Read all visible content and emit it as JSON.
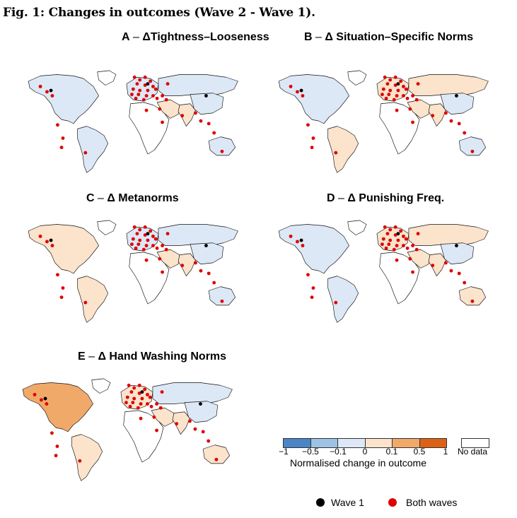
{
  "figure_title": "Fig. 1: Changes in outcomes (Wave 2 - Wave 1).",
  "panels": [
    {
      "letter": "A",
      "dash": " – ",
      "title": "ΔTightness–Looseness",
      "fills": {
        "na": "#dde8f6",
        "eu": "#dde8f6",
        "ru": "#dde8f6",
        "sa": "#dde8f6",
        "af": "#ffffff",
        "me": "#fbe3cc",
        "in": "#fbe3cc",
        "cn": "#dde8f6",
        "au": "#dde8f6",
        "gl": "#ffffff"
      }
    },
    {
      "letter": "B",
      "dash": " – ",
      "title": "Δ Situation–Specific Norms",
      "fills": {
        "na": "#dde8f6",
        "eu": "#fbe3cc",
        "ru": "#fbe3cc",
        "sa": "#fbe3cc",
        "af": "#ffffff",
        "me": "#fbe3cc",
        "in": "#fbe3cc",
        "cn": "#dde8f6",
        "au": "#dde8f6",
        "gl": "#ffffff"
      }
    },
    {
      "letter": "C",
      "dash": " – ",
      "title": "Δ Metanorms",
      "fills": {
        "na": "#fbe3cc",
        "eu": "#dde8f6",
        "ru": "#dde8f6",
        "sa": "#fbe3cc",
        "af": "#ffffff",
        "me": "#fbe3cc",
        "in": "#fbe3cc",
        "cn": "#dde8f6",
        "au": "#dde8f6",
        "gl": "#ffffff"
      }
    },
    {
      "letter": "D",
      "dash": " – ",
      "title": "Δ Punishing Freq.",
      "fills": {
        "na": "#dde8f6",
        "eu": "#fbe3cc",
        "ru": "#fbe3cc",
        "sa": "#dde8f6",
        "af": "#ffffff",
        "me": "#fbe3cc",
        "in": "#fbe3cc",
        "cn": "#dde8f6",
        "au": "#fbe3cc",
        "gl": "#ffffff"
      }
    },
    {
      "letter": "E",
      "dash": " – ",
      "title": "Δ Hand Washing Norms",
      "fills": {
        "na": "#f1a96a",
        "eu": "#fbe3cc",
        "ru": "#dde8f6",
        "sa": "#fbe3cc",
        "af": "#ffffff",
        "me": "#fbe3cc",
        "in": "#fbe3cc",
        "cn": "#dde8f6",
        "au": "#fbe3cc",
        "gl": "#ffffff"
      }
    }
  ],
  "legend": {
    "colors": [
      "#4a86c5",
      "#9cc3e4",
      "#dde8f6",
      "#fbe3cc",
      "#f1a96a",
      "#dc6116"
    ],
    "ticks": [
      "−1",
      "−0.5",
      "−0.1",
      "0",
      "0.1",
      "0.5",
      "1"
    ],
    "no_data_label": "No data",
    "caption": "Normalised change in outcome",
    "wave1_label": "Wave 1",
    "both_label": "Both waves",
    "wave1_color": "#000000",
    "both_color": "#e00000"
  }
}
